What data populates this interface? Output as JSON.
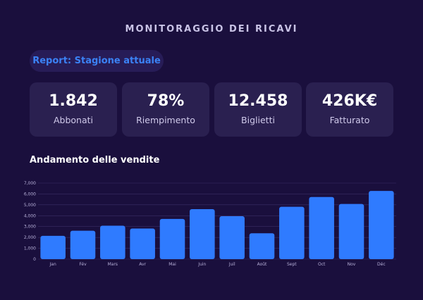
{
  "title": "MONITORAGGIO DEI RICAVI",
  "report_label": "Report: Stagione attuale",
  "kpis": [
    {
      "value": "1.842",
      "label": "Abbonati"
    },
    {
      "value": "78%",
      "label": "Riempimento"
    },
    {
      "value": "12.458",
      "label": "Biglietti"
    },
    {
      "value": "426K€",
      "label": "Fatturato"
    }
  ],
  "chart_title": "Andamento delle vendite",
  "colors": {
    "bar": "#2f7bff",
    "grid": "#3a2f66",
    "background": "#1a0f3d"
  },
  "chart_data": {
    "type": "bar",
    "title": "Andamento delle vendite",
    "categories": [
      "Jan",
      "Fév",
      "Mars",
      "Avr",
      "Mai",
      "Juin",
      "Juil",
      "Août",
      "Sept",
      "Oct",
      "Nov",
      "Déc"
    ],
    "values": [
      2150,
      2620,
      3080,
      2820,
      3700,
      4600,
      3950,
      2380,
      4820,
      5720,
      5080,
      6280
    ],
    "ylim": [
      0,
      7000
    ],
    "yticks": [
      "0",
      "1,000",
      "2,000",
      "3,000",
      "4,000",
      "5,000",
      "6,000",
      "7,000"
    ],
    "grid": true
  }
}
